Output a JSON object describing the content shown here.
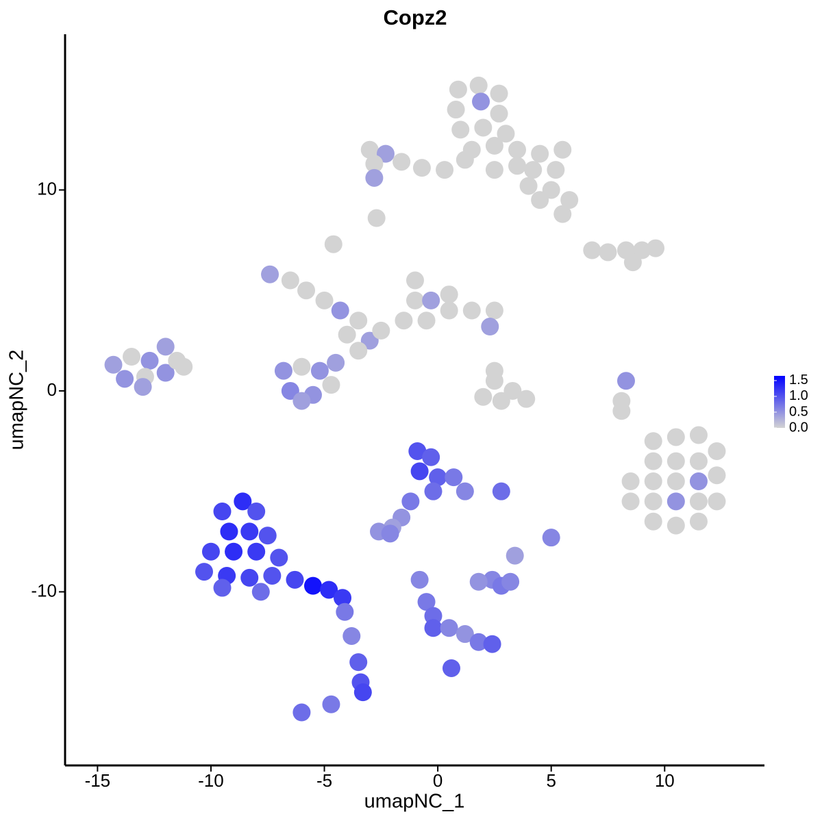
{
  "chart_data": {
    "type": "scatter",
    "title": "Copz2",
    "x_label": "umapNC_1",
    "y_label": "umapNC_2",
    "xlim": [
      -16.43,
      14.37
    ],
    "ylim": [
      -18.64,
      17.75
    ],
    "xticks": [
      -15,
      -10,
      -5,
      0,
      5,
      10
    ],
    "yticks": [
      -10,
      0,
      10
    ],
    "colors": [
      "#d3d3d3",
      "#0000ff"
    ],
    "colorlim": [
      0,
      1.65
    ],
    "colorticks": [
      {
        "value": 0,
        "label": "0.0"
      },
      0.5,
      {
        "value": 1,
        "label": "1.0"
      },
      1.5
    ],
    "x": [
      0.9,
      1.8,
      2.7,
      0.8,
      1.9,
      2.7,
      1,
      2,
      3,
      1.5,
      2.5,
      3.5,
      4.5,
      5.5,
      5.2,
      4.2,
      3.5,
      4,
      5,
      5.8,
      5.5,
      4.5,
      2.5,
      1.2,
      -3,
      -2.3,
      -1.6,
      -0.7,
      0.3,
      -2.8,
      -2.8,
      -2.7,
      6.8,
      7.5,
      8.3,
      9,
      9.6,
      8.6,
      -7.4,
      -6.5,
      -5.8,
      -5,
      -4.3,
      -4.6,
      -3.5,
      -3,
      -2.5,
      -1.5,
      -1,
      -1,
      -0.3,
      0.5,
      1.5,
      2.5,
      2.3,
      -0.5,
      0.5,
      -6.8,
      -6,
      -5.2,
      -6.5,
      -5.5,
      -4.7,
      -6,
      -4.5,
      -3.5,
      -4,
      -14.3,
      -13.5,
      -12.7,
      -13.8,
      -12.9,
      -12,
      -11.5,
      -12,
      -11.2,
      -13,
      2.5,
      3.3,
      2.8,
      2,
      3.9,
      2.5,
      8.1,
      8.3,
      8.1,
      8.5,
      8.5,
      9.5,
      9.5,
      9.5,
      9.5,
      9.5,
      10.5,
      10.5,
      10.5,
      10.5,
      10.5,
      11.5,
      11.5,
      11.5,
      11.5,
      11.5,
      12.3,
      12.3,
      12.3,
      -9.5,
      -8.6,
      -8,
      -9.2,
      -8.3,
      -7.5,
      -10,
      -9,
      -8,
      -7,
      -10.3,
      -9.3,
      -8.3,
      -7.3,
      -6.3,
      -5.5,
      -4.8,
      -4.2,
      -9.5,
      -7.8,
      -4.1,
      -3.8,
      -3.5,
      -3.4,
      -3.3,
      -6,
      -4.7,
      -0.9,
      -0.3,
      -0.8,
      0,
      0.7,
      1.2,
      -0.2,
      -1.2,
      -1.6,
      -2,
      -2.6,
      -2.1,
      2.8,
      5,
      2.4,
      1.8,
      2.8,
      3.2,
      3.4,
      -0.8,
      -0.5,
      -0.2,
      -0.2,
      0.5,
      1.2,
      1.8,
      2.4,
      0.6
    ],
    "y": [
      15,
      15.2,
      14.8,
      14,
      14.4,
      13.8,
      13,
      13.1,
      12.8,
      12,
      12.2,
      12,
      11.8,
      12,
      11,
      11,
      11.2,
      10.2,
      10,
      9.5,
      8.8,
      9.5,
      11,
      11.5,
      12,
      11.8,
      11.4,
      11.1,
      11,
      11.3,
      10.6,
      8.6,
      7,
      6.9,
      7,
      7,
      7.1,
      6.4,
      5.8,
      5.5,
      5,
      4.5,
      4,
      7.3,
      3.5,
      2.5,
      3,
      3.5,
      4.5,
      5.5,
      4.5,
      4,
      4,
      4,
      3.2,
      3.5,
      4.8,
      1,
      1.2,
      1,
      0,
      -0.2,
      0.3,
      -0.5,
      1.4,
      2,
      2.8,
      1.3,
      1.7,
      1.5,
      0.6,
      0.7,
      0.9,
      1.5,
      2.2,
      1.2,
      0.2,
      0.5,
      0,
      -0.5,
      -0.3,
      -0.4,
      1,
      -0.5,
      0.5,
      -1,
      -4.5,
      -5.5,
      -2.5,
      -3.5,
      -4.5,
      -5.5,
      -6.5,
      -2.3,
      -3.5,
      -4.5,
      -5.5,
      -6.7,
      -2.2,
      -3.5,
      -4.5,
      -5.5,
      -6.5,
      -3,
      -4.2,
      -5.5,
      -6,
      -5.5,
      -6,
      -7,
      -7,
      -7.2,
      -8,
      -8,
      -8,
      -8.3,
      -9,
      -9.2,
      -9.3,
      -9.2,
      -9.4,
      -9.7,
      -9.9,
      -10.3,
      -9.8,
      -10,
      -11,
      -12.2,
      -13.5,
      -14.5,
      -15,
      -16,
      -15.6,
      -3,
      -3.3,
      -4,
      -4.3,
      -4.3,
      -5,
      -5,
      -5.5,
      -6.3,
      -6.8,
      -7,
      -7.1,
      -5,
      -7.3,
      -9.4,
      -9.5,
      -9.7,
      -9.5,
      -8.2,
      -9.4,
      -10.5,
      -11.2,
      -11.8,
      -11.8,
      -12.1,
      -12.5,
      -12.6,
      -13.8
    ],
    "values": [
      0,
      0,
      0,
      0,
      0.5,
      0,
      0,
      0,
      0,
      0,
      0,
      0,
      0,
      0,
      0,
      0,
      0,
      0,
      0,
      0,
      0,
      0,
      0,
      0,
      0,
      0.4,
      0,
      0,
      0,
      0,
      0.4,
      0,
      0,
      0,
      0,
      0,
      0,
      0,
      0.4,
      0,
      0,
      0,
      0.5,
      0,
      0,
      0.4,
      0,
      0,
      0,
      0,
      0.4,
      0,
      0,
      0,
      0.4,
      0,
      0,
      0.5,
      0,
      0.5,
      0.6,
      0.5,
      0,
      0.4,
      0.4,
      0,
      0,
      0.4,
      0,
      0.5,
      0.5,
      0,
      0.5,
      0,
      0.4,
      0,
      0.4,
      0,
      0,
      0,
      0,
      0,
      0,
      0,
      0.5,
      0,
      0,
      0,
      0,
      0,
      0,
      0,
      0,
      0,
      0,
      0,
      0.5,
      0,
      0,
      0,
      0.5,
      0,
      0,
      0,
      0,
      0,
      1.1,
      1.3,
      1.0,
      1.3,
      1.2,
      1.0,
      1.1,
      1.3,
      1.2,
      1.0,
      1.0,
      1.2,
      1.1,
      1.0,
      1.1,
      1.5,
      1.3,
      1.2,
      0.9,
      0.8,
      0.7,
      0.6,
      0.9,
      1.0,
      1.1,
      0.8,
      0.7,
      1.0,
      0.9,
      1.1,
      0.9,
      0.7,
      0.6,
      0.8,
      0.7,
      0.5,
      0.4,
      0.5,
      0.6,
      0.8,
      0.6,
      0.6,
      0.5,
      0.7,
      0.6,
      0.4,
      0.6,
      0.7,
      0.8,
      0.9,
      0.6,
      0.5,
      0.7,
      0.9,
      0.9
    ]
  }
}
